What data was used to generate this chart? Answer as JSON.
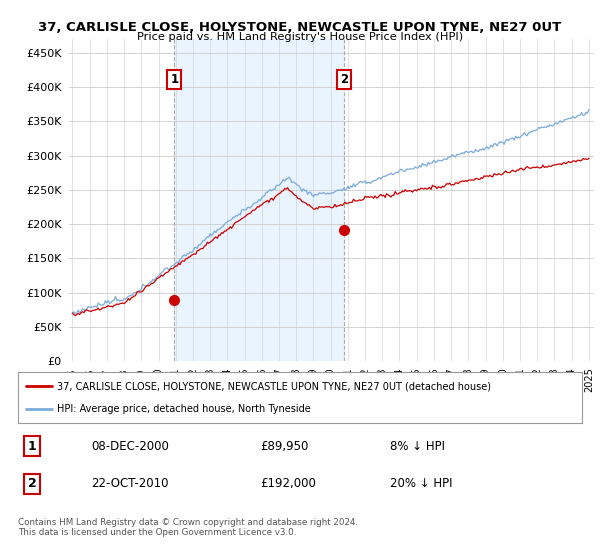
{
  "title_line1": "37, CARLISLE CLOSE, HOLYSTONE, NEWCASTLE UPON TYNE, NE27 0UT",
  "title_line2": "Price paid vs. HM Land Registry's House Price Index (HPI)",
  "ytick_values": [
    0,
    50000,
    100000,
    150000,
    200000,
    250000,
    300000,
    350000,
    400000,
    450000
  ],
  "ylim": [
    0,
    470000
  ],
  "xlim_start": 1994.8,
  "xlim_end": 2025.3,
  "purchase1_x": 2000.92,
  "purchase1_y": 89950,
  "purchase1_label": "1",
  "purchase2_x": 2010.8,
  "purchase2_y": 192000,
  "purchase2_label": "2",
  "red_line_color": "#cc0000",
  "blue_line_color": "#7aabdb",
  "blue_fill_color": "#ddeeff",
  "legend_red_label": "37, CARLISLE CLOSE, HOLYSTONE, NEWCASTLE UPON TYNE, NE27 0UT (detached house)",
  "legend_blue_label": "HPI: Average price, detached house, North Tyneside",
  "annotation1_date": "08-DEC-2000",
  "annotation1_price": "£89,950",
  "annotation1_hpi": "8% ↓ HPI",
  "annotation2_date": "22-OCT-2010",
  "annotation2_price": "£192,000",
  "annotation2_hpi": "20% ↓ HPI",
  "footnote": "Contains HM Land Registry data © Crown copyright and database right 2024.\nThis data is licensed under the Open Government Licence v3.0.",
  "background_color": "#ffffff",
  "grid_color": "#cccccc"
}
